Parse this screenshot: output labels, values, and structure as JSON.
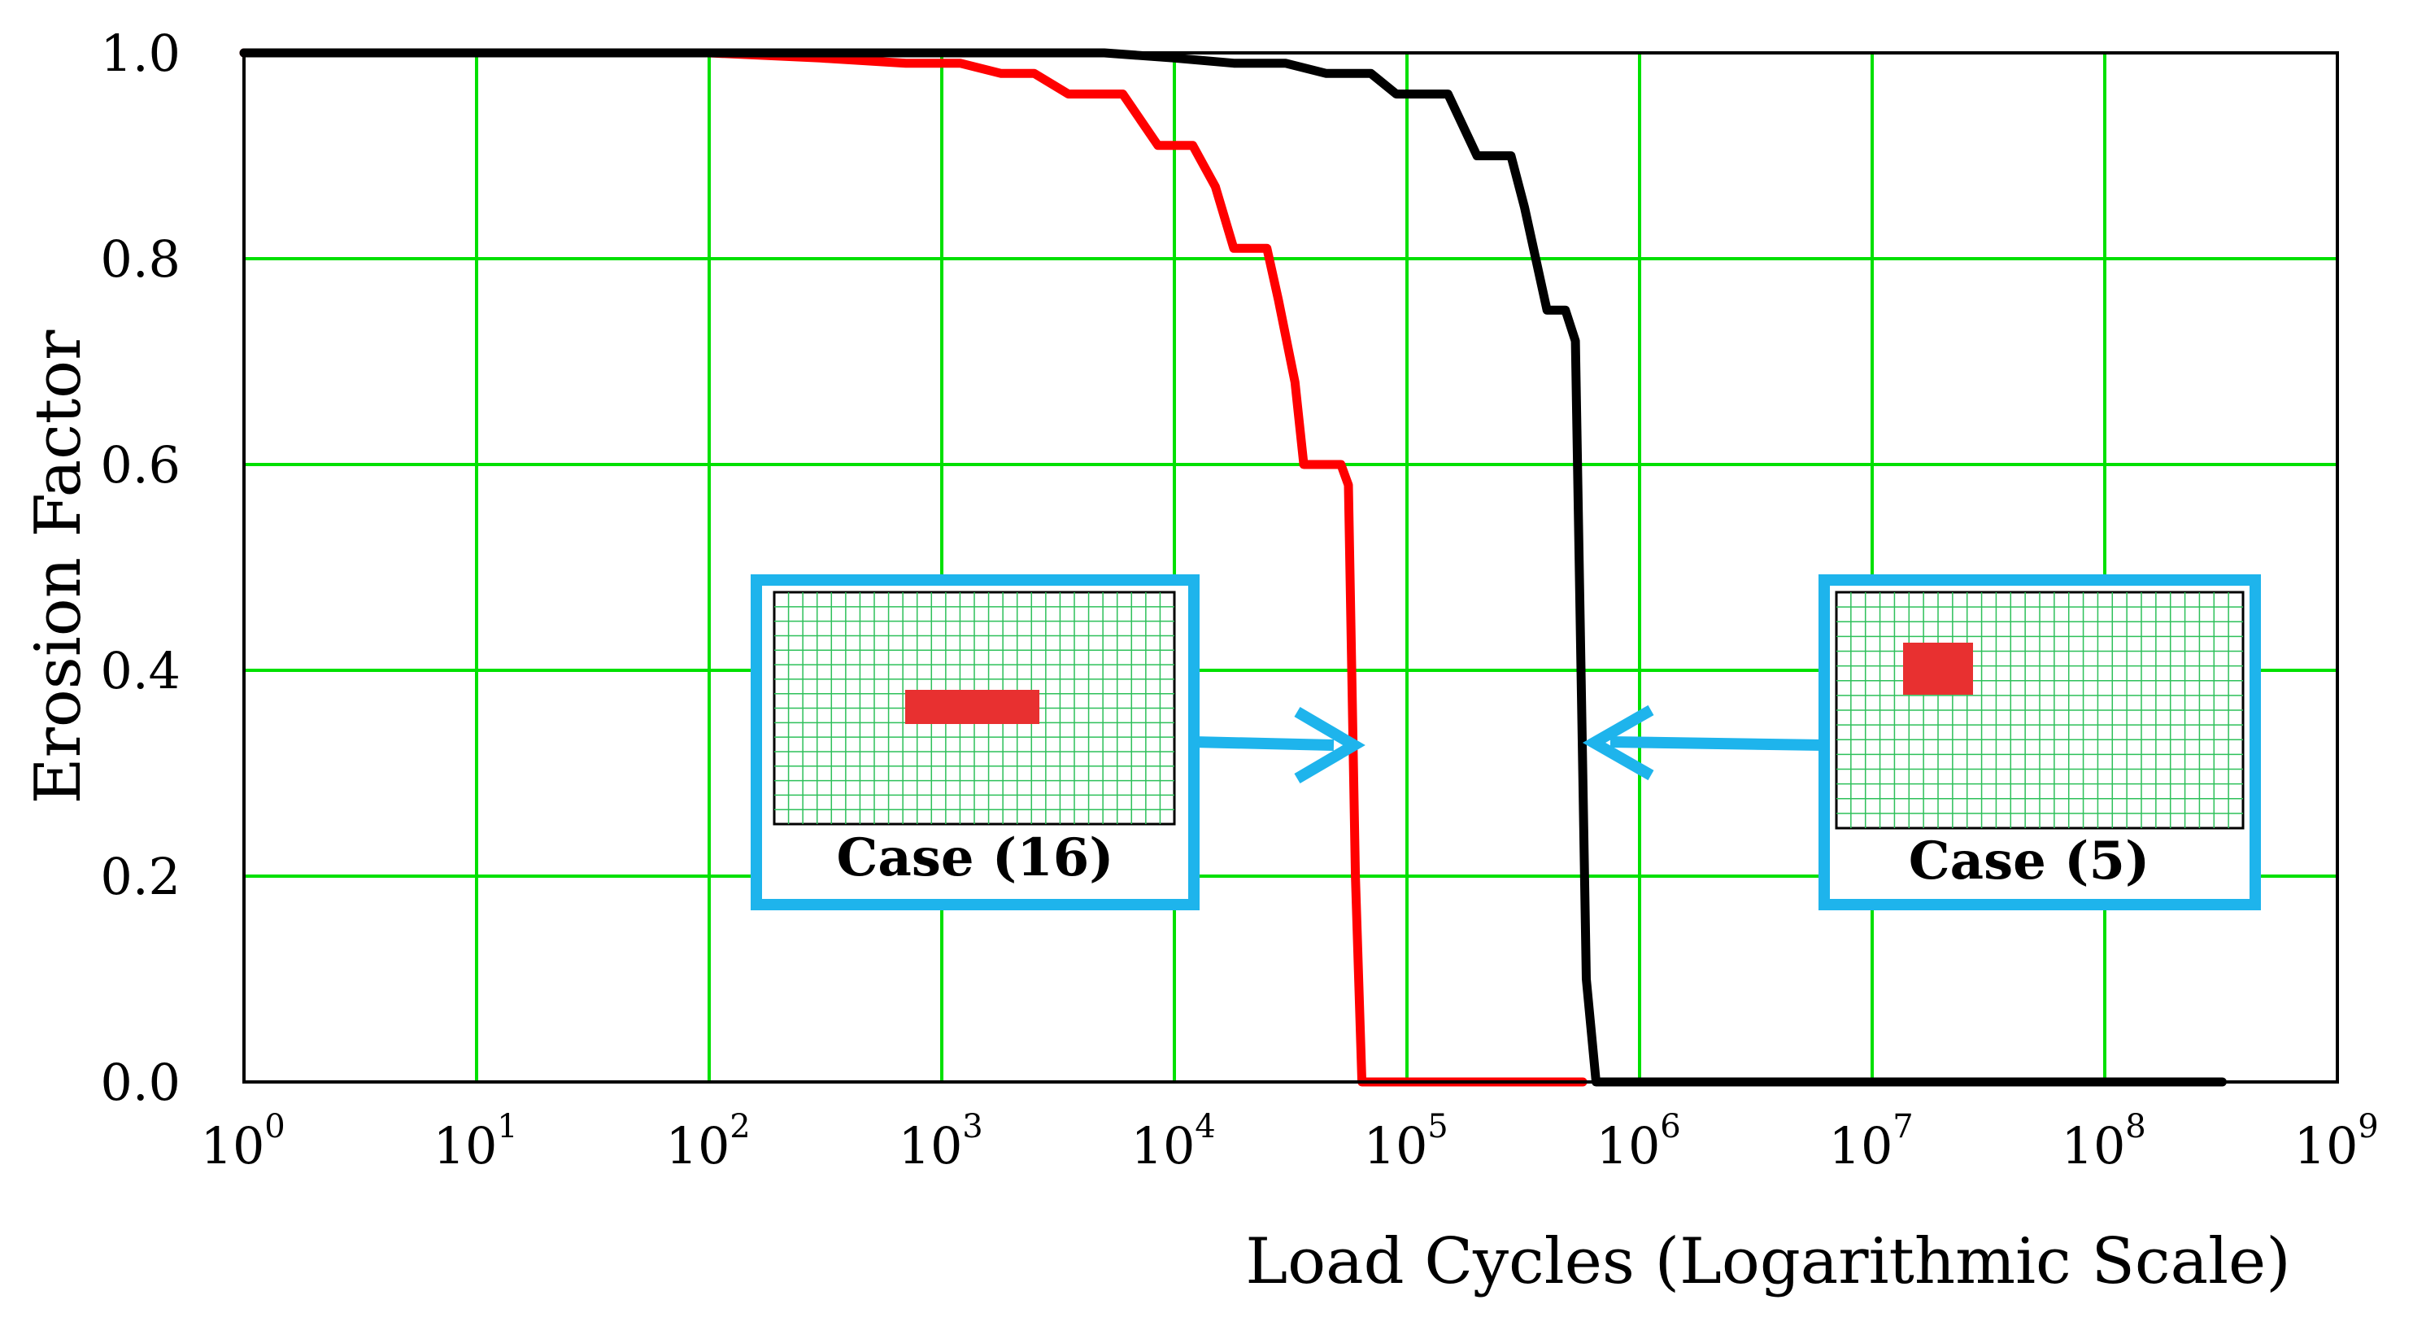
{
  "chart_data": {
    "type": "line",
    "x_scale": "log",
    "xlim": [
      1,
      1000000000
    ],
    "ylim": [
      0,
      1.0
    ],
    "xlabel": "Load Cycles (Logarithmic Scale)",
    "ylabel": "Erosion Factor",
    "grid": true,
    "grid_color": "#00e000",
    "x_ticks": [
      {
        "base": "10",
        "exp": "0",
        "value": 1
      },
      {
        "base": "10",
        "exp": "1",
        "value": 10
      },
      {
        "base": "10",
        "exp": "2",
        "value": 100
      },
      {
        "base": "10",
        "exp": "3",
        "value": 1000
      },
      {
        "base": "10",
        "exp": "4",
        "value": 10000
      },
      {
        "base": "10",
        "exp": "5",
        "value": 100000
      },
      {
        "base": "10",
        "exp": "6",
        "value": 1000000
      },
      {
        "base": "10",
        "exp": "7",
        "value": 10000000
      },
      {
        "base": "10",
        "exp": "8",
        "value": 100000000
      },
      {
        "base": "10",
        "exp": "9",
        "value": 1000000000
      }
    ],
    "y_ticks": [
      "0.0",
      "0.2",
      "0.4",
      "0.6",
      "0.8",
      "1.0"
    ],
    "series": [
      {
        "color": "#ff0000",
        "x": [
          1,
          100,
          300,
          700,
          1200,
          1800,
          2500,
          3500,
          6000,
          8500,
          12000,
          15000,
          18000,
          25000,
          28000,
          33000,
          36000,
          52000,
          56000,
          60000,
          64000,
          100000,
          300000,
          570000
        ],
        "y": [
          1.0,
          1.0,
          0.995,
          0.99,
          0.99,
          0.98,
          0.98,
          0.96,
          0.96,
          0.91,
          0.91,
          0.87,
          0.81,
          0.81,
          0.76,
          0.68,
          0.6,
          0.6,
          0.58,
          0.2,
          0.0,
          0.0,
          0.0,
          0.0
        ]
      },
      {
        "color": "#000000",
        "x": [
          1,
          5000,
          10000,
          18000,
          30000,
          45000,
          70000,
          90000,
          110000,
          150000,
          200000,
          280000,
          320000,
          400000,
          480000,
          530000,
          560000,
          590000,
          650000,
          1000000,
          10000000,
          100000000,
          320000000
        ],
        "y": [
          1.0,
          1.0,
          0.995,
          0.99,
          0.99,
          0.98,
          0.98,
          0.96,
          0.96,
          0.96,
          0.9,
          0.9,
          0.85,
          0.75,
          0.75,
          0.72,
          0.4,
          0.1,
          0.0,
          0.0,
          0.0,
          0.0,
          0.0
        ]
      }
    ],
    "annotations": [
      {
        "label": "Case (16)",
        "points_to_series": 0
      },
      {
        "label": "Case (5)",
        "points_to_series": 1
      }
    ],
    "annotation_color": "#1eb4ec",
    "annotation_patch_color": "#e83030"
  }
}
